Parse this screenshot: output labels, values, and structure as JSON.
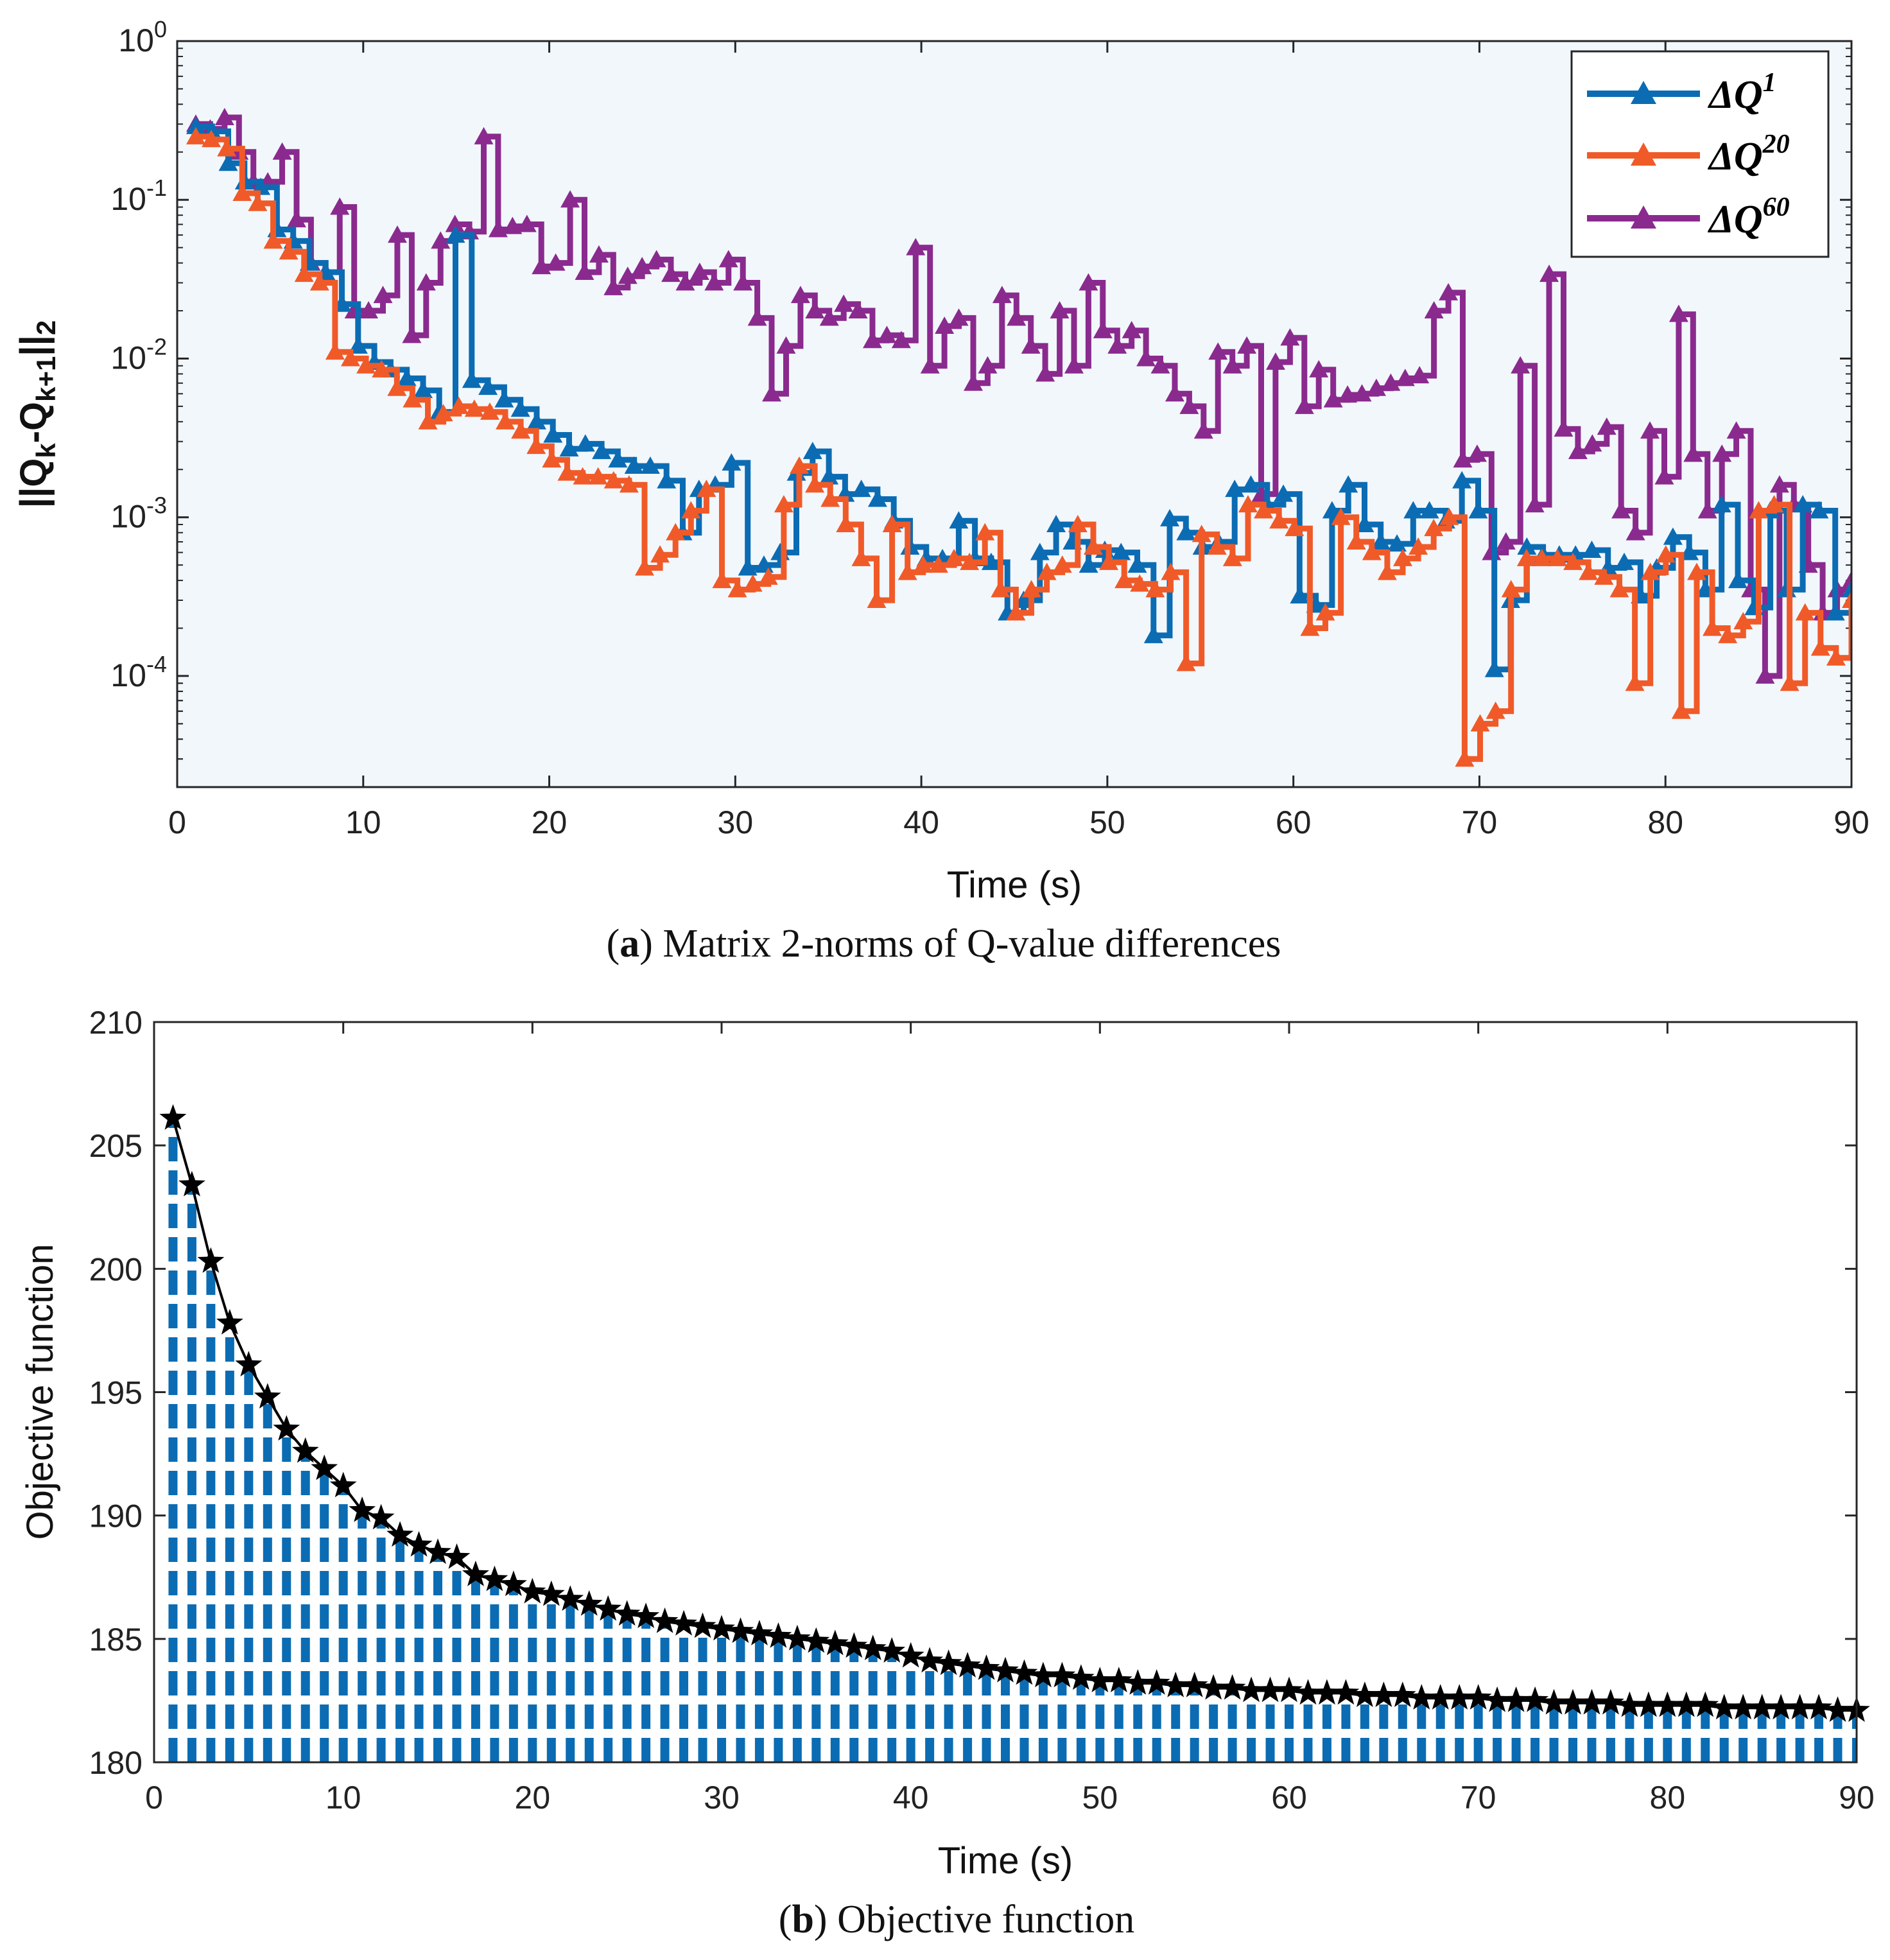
{
  "chart_data": [
    {
      "type": "line",
      "subtype": "stairs-log",
      "caption_label": "a",
      "caption_text": " Matrix 2-norms of Q-value differences",
      "xlabel": "Time (s)",
      "ylabel_text": "||Q_k-Q_k+1||_2",
      "ylabel_parts": {
        "open": "||Q",
        "sub1": "k",
        "mid": "-Q",
        "sub2": "k+1",
        "close": "||",
        "sub3": "2"
      },
      "xlim": [
        0,
        90
      ],
      "ylim_log10": [
        -4.7,
        0
      ],
      "x_ticks": [
        0,
        10,
        20,
        30,
        40,
        50,
        60,
        70,
        80,
        90
      ],
      "y_ticks": [
        {
          "exp": 0,
          "base": "10",
          "sup": "0"
        },
        {
          "exp": -1,
          "base": "10",
          "sup": "-1"
        },
        {
          "exp": -2,
          "base": "10",
          "sup": "-2"
        },
        {
          "exp": -3,
          "base": "10",
          "sup": "-3"
        },
        {
          "exp": -4,
          "base": "10",
          "sup": "-4"
        }
      ],
      "background": "#f2f7fc",
      "legend_position": "top-right",
      "series": [
        {
          "name": "ΔQ1",
          "legend_base": "ΔQ",
          "legend_sup": "1",
          "color": "#0b6cb3",
          "values": [
            0.29,
            0.27,
            0.17,
            0.13,
            0.12,
            0.065,
            0.055,
            0.04,
            0.035,
            0.022,
            0.012,
            0.0095,
            0.0085,
            0.0075,
            0.0063,
            0.0046,
            0.06,
            0.0073,
            0.0066,
            0.0055,
            0.0048,
            0.004,
            0.0033,
            0.0027,
            0.0029,
            0.0026,
            0.0023,
            0.0021,
            0.0021,
            0.0017,
            0.0008,
            0.0015,
            0.0016,
            0.0022,
            0.00048,
            0.0005,
            0.0006,
            0.0019,
            0.0026,
            0.0018,
            0.0014,
            0.0015,
            0.0013,
            0.00095,
            0.00065,
            0.00055,
            0.00055,
            0.00095,
            0.00055,
            0.00052,
            0.00025,
            0.0003,
            0.0006,
            0.0009,
            0.0007,
            0.0005,
            0.00062,
            0.0006,
            0.0005,
            0.00018,
            0.00098,
            0.0008,
            0.00065,
            0.0007,
            0.0015,
            0.0016,
            0.0012,
            0.0014,
            0.00032,
            0.00028,
            0.0011,
            0.0016,
            0.0009,
            0.0007,
            0.00068,
            0.0011,
            0.0011,
            0.00095,
            0.0017,
            0.0011,
            0.00011,
            0.0003,
            0.00065,
            0.00058,
            0.00058,
            0.00058,
            0.00062,
            0.00048,
            0.00052,
            0.00032,
            0.00048,
            0.00075,
            0.0006,
            0.00035,
            0.0012,
            0.0004,
            0.00027,
            0.0011,
            0.00035,
            0.0012,
            0.0011,
            0.00025,
            0.00035
          ]
        },
        {
          "name": "ΔQ20",
          "legend_base": "ΔQ",
          "legend_sup": "20",
          "color": "#f05a28",
          "values": [
            0.25,
            0.24,
            0.21,
            0.11,
            0.095,
            0.055,
            0.047,
            0.034,
            0.03,
            0.011,
            0.01,
            0.009,
            0.0085,
            0.0065,
            0.0055,
            0.004,
            0.0045,
            0.005,
            0.0048,
            0.0046,
            0.004,
            0.0035,
            0.0028,
            0.0023,
            0.0019,
            0.0018,
            0.0018,
            0.0017,
            0.0016,
            0.00048,
            0.00058,
            0.0008,
            0.0011,
            0.0015,
            0.0004,
            0.00035,
            0.00038,
            0.00042,
            0.0012,
            0.0021,
            0.0016,
            0.0013,
            0.0009,
            0.00055,
            0.0003,
            0.0009,
            0.00045,
            0.0005,
            0.0005,
            0.00055,
            0.00052,
            0.0008,
            0.00035,
            0.00025,
            0.00035,
            0.00045,
            0.0005,
            0.0009,
            0.00065,
            0.00052,
            0.0004,
            0.00038,
            0.00035,
            0.00045,
            0.00012,
            0.00078,
            0.00065,
            0.00055,
            0.0012,
            0.0011,
            0.00095,
            0.00085,
            0.0002,
            0.00025,
            0.001,
            0.0007,
            0.0006,
            0.00045,
            0.00055,
            0.00065,
            0.00085,
            0.001,
            3e-05,
            5e-05,
            6e-05,
            0.00035,
            0.00055,
            0.00055,
            0.00055,
            0.00052,
            0.00045,
            0.00042,
            0.00035,
            9e-05,
            0.00045,
            0.00058,
            6e-05,
            0.00045,
            0.0002,
            0.00018,
            0.00022,
            0.0011,
            0.0012,
            9e-05,
            0.00025,
            0.00015,
            0.00013,
            0.0003
          ]
        },
        {
          "name": "ΔQ60",
          "legend_base": "ΔQ",
          "legend_sup": "60",
          "color": "#8a2a8e",
          "values": [
            0.3,
            0.28,
            0.33,
            0.2,
            0.13,
            0.13,
            0.2,
            0.075,
            0.04,
            0.035,
            0.09,
            0.02,
            0.02,
            0.025,
            0.06,
            0.014,
            0.03,
            0.055,
            0.07,
            0.063,
            0.25,
            0.065,
            0.068,
            0.07,
            0.038,
            0.04,
            0.1,
            0.035,
            0.045,
            0.028,
            0.033,
            0.038,
            0.042,
            0.034,
            0.03,
            0.035,
            0.03,
            0.042,
            0.03,
            0.018,
            0.006,
            0.012,
            0.025,
            0.02,
            0.018,
            0.022,
            0.02,
            0.013,
            0.014,
            0.013,
            0.05,
            0.009,
            0.016,
            0.018,
            0.007,
            0.009,
            0.025,
            0.018,
            0.012,
            0.008,
            0.02,
            0.009,
            0.03,
            0.015,
            0.012,
            0.015,
            0.01,
            0.009,
            0.006,
            0.005,
            0.0035,
            0.011,
            0.009,
            0.012,
            0.0014,
            0.0095,
            0.0135,
            0.005,
            0.0085,
            0.0055,
            0.0059,
            0.006,
            0.0065,
            0.007,
            0.0075,
            0.0078,
            0.02,
            0.026,
            0.0023,
            0.0025,
            0.0006,
            0.0007,
            0.009,
            0.0012,
            0.034,
            0.0036,
            0.0026,
            0.0029,
            0.0037,
            0.0011,
            0.0008,
            0.0035,
            0.0018,
            0.019,
            0.0025,
            0.0011,
            0.0025,
            0.0035,
            0.00035,
            0.0001,
            0.0016,
            0.0012,
            0.0005,
            0.00025,
            0.00035,
            0.0004
          ]
        }
      ]
    },
    {
      "type": "bar",
      "subtype": "stem-stars",
      "caption_label": "b",
      "caption_text": " Objective function",
      "xlabel": "Time (s)",
      "ylabel": "Objective function",
      "xlim": [
        0,
        90
      ],
      "ylim": [
        180,
        210
      ],
      "x_ticks": [
        0,
        10,
        20,
        30,
        40,
        50,
        60,
        70,
        80,
        90
      ],
      "y_ticks": [
        180,
        185,
        190,
        195,
        200,
        205,
        210
      ],
      "bar_color": "#0b6cb3",
      "marker_color": "#000000",
      "x": [
        1,
        2,
        3,
        4,
        5,
        6,
        7,
        8,
        9,
        10,
        11,
        12,
        13,
        14,
        15,
        16,
        17,
        18,
        19,
        20,
        21,
        22,
        23,
        24,
        25,
        26,
        27,
        28,
        29,
        30,
        31,
        32,
        33,
        34,
        35,
        36,
        37,
        38,
        39,
        40,
        41,
        42,
        43,
        44,
        45,
        46,
        47,
        48,
        49,
        50,
        51,
        52,
        53,
        54,
        55,
        56,
        57,
        58,
        59,
        60,
        61,
        62,
        63,
        64,
        65,
        66,
        67,
        68,
        69,
        70,
        71,
        72,
        73,
        74,
        75,
        76,
        77,
        78,
        79,
        80,
        81,
        82,
        83,
        84,
        85,
        86,
        87,
        88,
        89,
        90
      ],
      "values": [
        206.1,
        203.4,
        200.3,
        197.8,
        196.1,
        194.8,
        193.5,
        192.6,
        191.9,
        191.2,
        190.2,
        189.9,
        189.2,
        188.8,
        188.5,
        188.3,
        187.6,
        187.4,
        187.2,
        186.9,
        186.8,
        186.6,
        186.4,
        186.2,
        186.0,
        185.9,
        185.7,
        185.6,
        185.5,
        185.4,
        185.3,
        185.2,
        185.1,
        185.0,
        184.9,
        184.8,
        184.7,
        184.6,
        184.5,
        184.3,
        184.1,
        184.0,
        183.9,
        183.8,
        183.7,
        183.6,
        183.5,
        183.5,
        183.4,
        183.3,
        183.3,
        183.2,
        183.2,
        183.1,
        183.1,
        183.0,
        183.0,
        182.9,
        182.9,
        182.9,
        182.8,
        182.8,
        182.8,
        182.7,
        182.7,
        182.7,
        182.6,
        182.6,
        182.6,
        182.6,
        182.5,
        182.5,
        182.5,
        182.4,
        182.4,
        182.4,
        182.4,
        182.3,
        182.3,
        182.3,
        182.3,
        182.3,
        182.2,
        182.2,
        182.2,
        182.2,
        182.2,
        182.2,
        182.1,
        182.1
      ]
    }
  ]
}
